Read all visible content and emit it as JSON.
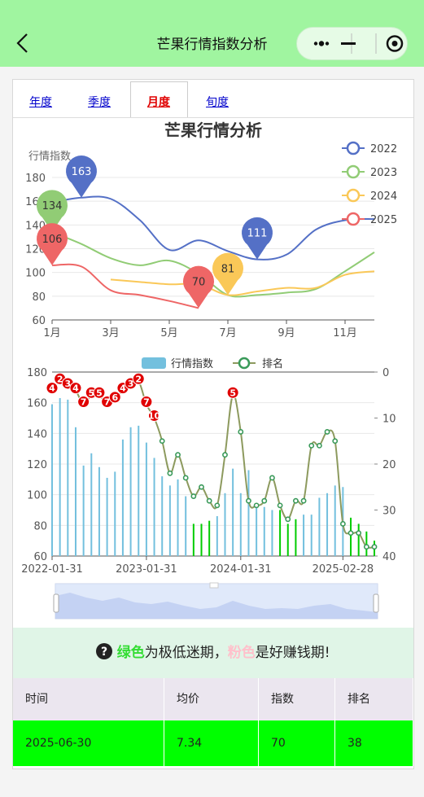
{
  "header": {
    "title": "芒果行情指数分析"
  },
  "tabs": {
    "items": [
      "年度",
      "季度",
      "月度",
      "旬度"
    ],
    "active": 2
  },
  "chart_data": [
    {
      "type": "line",
      "title": "芒果行情分析",
      "y_label": "行情指数",
      "categories": [
        "1月",
        null,
        "3月",
        null,
        "5月",
        null,
        "7月",
        null,
        "9月",
        null,
        "11月",
        null
      ],
      "ylim": [
        60,
        180
      ],
      "yticks": [
        60,
        80,
        100,
        120,
        140,
        160,
        180
      ],
      "grid": true,
      "legend": "top-right",
      "smooth": true,
      "series": [
        {
          "name": "2022",
          "color": "#5470c6",
          "pins": [
            "max",
            "min"
          ],
          "pin_text_color": "#ffffff",
          "values": [
            159,
            163,
            162,
            144,
            119,
            127,
            118,
            111,
            115,
            136,
            144,
            145
          ]
        },
        {
          "name": "2023",
          "color": "#91cc75",
          "pins": [
            "max"
          ],
          "pin_text_color": "#333333",
          "values": [
            134,
            124,
            112,
            106,
            110,
            99,
            81,
            81,
            83,
            86,
            101,
            117
          ]
        },
        {
          "name": "2024",
          "color": "#fac858",
          "pins": [
            "min"
          ],
          "pin_text_color": "#333333",
          "values": [
            null,
            null,
            94,
            92,
            90,
            90,
            81,
            84,
            87,
            87,
            98,
            101
          ]
        },
        {
          "name": "2025",
          "color": "#ee6666",
          "pins": [
            "max",
            "min"
          ],
          "pin_text_color": "#333333",
          "values": [
            106,
            105,
            85,
            81,
            76,
            70,
            null,
            null,
            null,
            null,
            null,
            null
          ]
        }
      ]
    },
    {
      "type": "bar_line",
      "categories": [
        "2022-01-31",
        null,
        null,
        null,
        null,
        null,
        null,
        null,
        null,
        null,
        null,
        null,
        "2023-01-31",
        null,
        null,
        null,
        null,
        null,
        null,
        null,
        null,
        null,
        null,
        null,
        "2024-01-31",
        null,
        null,
        null,
        null,
        null,
        null,
        null,
        null,
        null,
        null,
        null,
        null,
        "2025-02-28",
        null,
        null,
        null,
        null
      ],
      "ylim": [
        60,
        180
      ],
      "yticks": [
        60,
        80,
        100,
        120,
        140,
        160,
        180
      ],
      "y2lim": [
        0,
        40
      ],
      "y2ticks": [
        0,
        10,
        20,
        30,
        40
      ],
      "y2_inverse": true,
      "grid": true,
      "legend": "top",
      "series": [
        {
          "name": "行情指数",
          "type": "bar",
          "color": "#73c0de",
          "colors": [
            "#73c0de",
            "#73c0de",
            "#73c0de",
            "#73c0de",
            "#73c0de",
            "#73c0de",
            "#73c0de",
            "#73c0de",
            "#73c0de",
            "#73c0de",
            "#73c0de",
            "#73c0de",
            "#73c0de",
            "#73c0de",
            "#73c0de",
            "#73c0de",
            "#73c0de",
            "#73c0de",
            "#00cc00",
            "#00cc00",
            "#00cc00",
            "#73c0de",
            "#73c0de",
            "#73c0de",
            "#73c0de",
            "#73c0de",
            "#73c0de",
            "#73c0de",
            "#73c0de",
            "#00cc00",
            "#00cc00",
            "#00cc00",
            "#73c0de",
            "#73c0de",
            "#73c0de",
            "#73c0de",
            "#73c0de",
            "#73c0de",
            "#00cc00",
            "#00cc00",
            "#00cc00",
            "#00cc00"
          ],
          "values": [
            159,
            163,
            162,
            144,
            119,
            127,
            118,
            111,
            115,
            136,
            144,
            145,
            134,
            124,
            112,
            106,
            110,
            99,
            81,
            81,
            83,
            86,
            101,
            117,
            101,
            116,
            94,
            92,
            90,
            90,
            81,
            84,
            87,
            87,
            98,
            101,
            106,
            105,
            85,
            81,
            76,
            70
          ]
        },
        {
          "name": "排名",
          "type": "line",
          "axis": "y2",
          "color": "#8d9a5e",
          "marker_color": "#3a9a5a",
          "label_color": "#e00000",
          "show_labels": [
            true,
            true,
            true,
            true,
            true,
            true,
            true,
            true,
            true,
            true,
            true,
            true,
            true,
            true,
            false,
            false,
            false,
            false,
            false,
            false,
            false,
            false,
            false,
            true,
            false,
            false,
            false,
            false,
            false,
            false,
            false,
            false,
            false,
            false,
            false,
            false,
            false,
            false,
            false,
            false,
            false,
            false
          ],
          "values": [
            4,
            2,
            3,
            4,
            7,
            5,
            5,
            7,
            6,
            4,
            3,
            2,
            7,
            10,
            15,
            22,
            18,
            23,
            27,
            25,
            28,
            29,
            18,
            5,
            13,
            28,
            29,
            28,
            23,
            29,
            32,
            28,
            28,
            16,
            16,
            13,
            15,
            33,
            35,
            35,
            38,
            38
          ]
        }
      ]
    }
  ],
  "note": {
    "green": "绿色",
    "text1": "为极低迷期，",
    "pink": "粉色",
    "text2": "是好赚钱期!"
  },
  "table": {
    "columns": [
      "时间",
      "均价",
      "指数",
      "排名"
    ],
    "rows": [
      [
        "2025-06-30",
        7.34,
        70,
        38
      ]
    ]
  }
}
